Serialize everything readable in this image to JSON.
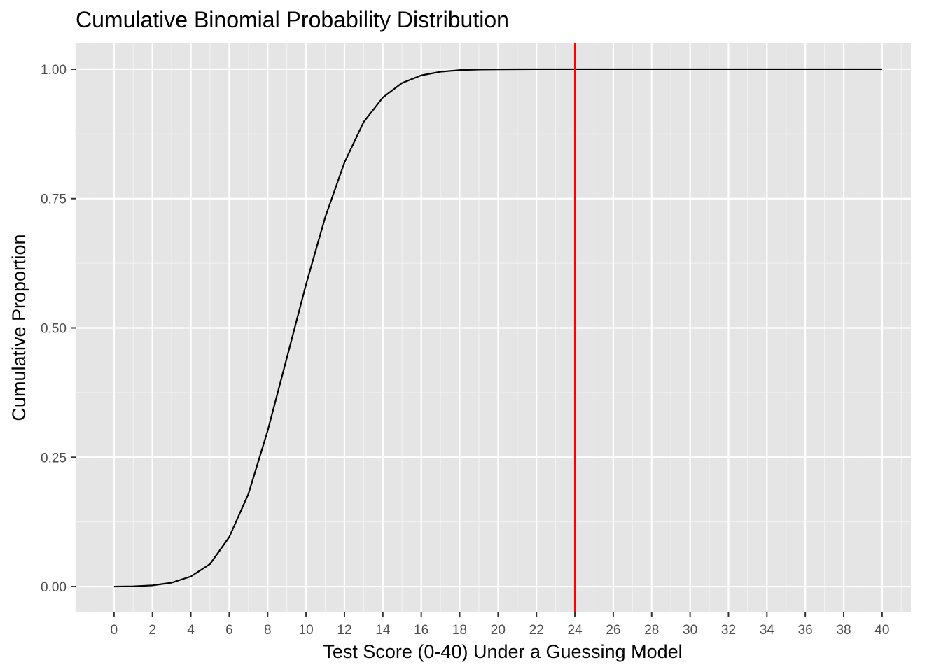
{
  "chart_data": {
    "type": "line",
    "title": "Cumulative Binomial Probability Distribution",
    "xlabel": "Test Score (0-40) Under a Guessing Model",
    "ylabel": "Cumulative Proportion",
    "xlim": [
      -2,
      41.5
    ],
    "ylim": [
      -0.05,
      1.05
    ],
    "x_ticks": [
      0,
      2,
      4,
      6,
      8,
      10,
      12,
      14,
      16,
      18,
      20,
      22,
      24,
      26,
      28,
      30,
      32,
      34,
      36,
      38,
      40
    ],
    "x_tick_labels": [
      "0",
      "2",
      "4",
      "6",
      "8",
      "10",
      "12",
      "14",
      "16",
      "18",
      "20",
      "22",
      "24",
      "26",
      "28",
      "30",
      "32",
      "34",
      "36",
      "38",
      "40"
    ],
    "y_ticks": [
      0,
      0.25,
      0.5,
      0.75,
      1.0
    ],
    "y_tick_labels": [
      "0.00",
      "0.25",
      "0.50",
      "0.75",
      "1.00"
    ],
    "grid": true,
    "background": "#e5e5e5",
    "series": [
      {
        "color": "#000000",
        "x": [
          0,
          1,
          2,
          3,
          4,
          5,
          6,
          7,
          8,
          9,
          10,
          11,
          12,
          13,
          14,
          15,
          16,
          17,
          18,
          19,
          20,
          21,
          22,
          23,
          24,
          25,
          26,
          27,
          28,
          29,
          30,
          31,
          32,
          33,
          34,
          35,
          36,
          37,
          38,
          39,
          40
        ],
        "y": [
          0.0,
          0.0005,
          0.0023,
          0.0075,
          0.0195,
          0.0436,
          0.0957,
          0.1792,
          0.301,
          0.442,
          0.5839,
          0.7142,
          0.8197,
          0.898,
          0.9455,
          0.9734,
          0.9881,
          0.9951,
          0.9982,
          0.9994,
          0.9998,
          0.9999,
          1.0,
          1.0,
          1.0,
          1.0,
          1.0,
          1.0,
          1.0,
          1.0,
          1.0,
          1.0,
          1.0,
          1.0,
          1.0,
          1.0,
          1.0,
          1.0,
          1.0,
          1.0,
          1.0
        ]
      }
    ],
    "vline": {
      "x": 24,
      "color": "#ff0000"
    }
  }
}
